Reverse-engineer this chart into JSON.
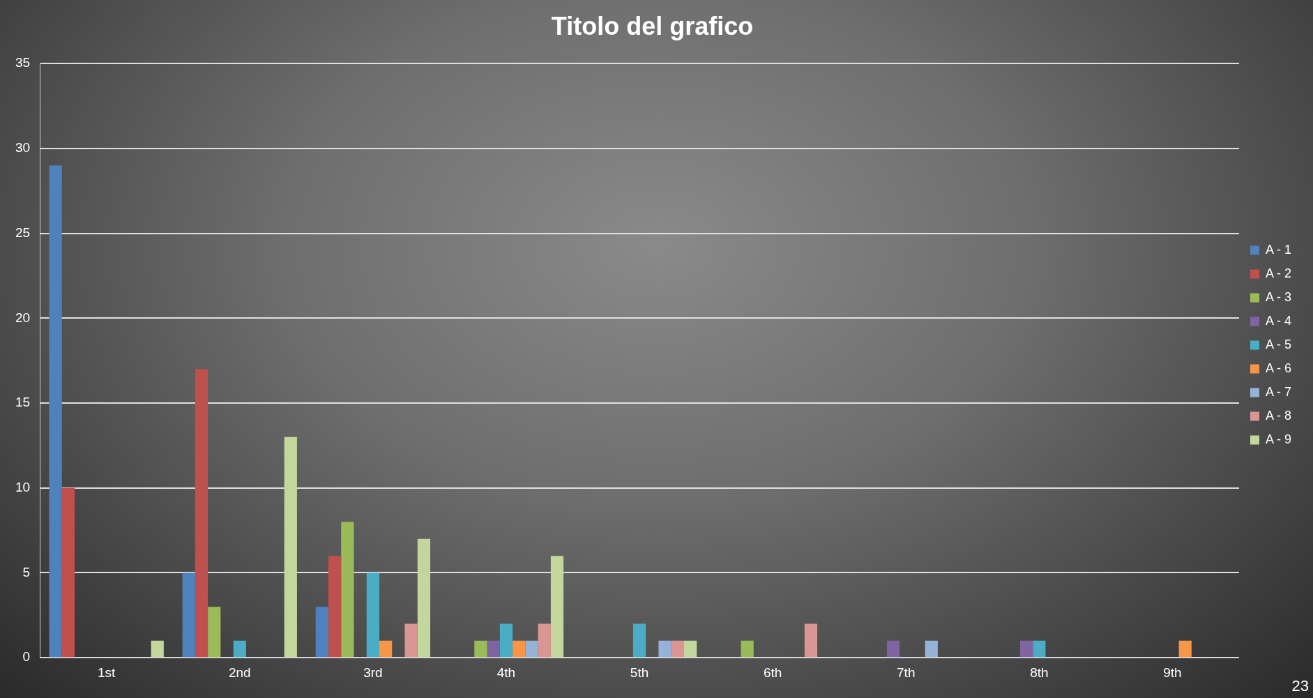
{
  "chart_data": {
    "type": "bar",
    "title": "Titolo del grafico",
    "categories": [
      "1st",
      "2nd",
      "3rd",
      "4th",
      "5th",
      "6th",
      "7th",
      "8th",
      "9th"
    ],
    "series": [
      {
        "name": "A - 1",
        "color": "#4f81bd",
        "values": [
          29,
          5,
          3,
          0,
          0,
          0,
          0,
          0,
          0
        ]
      },
      {
        "name": "A - 2",
        "color": "#c0504d",
        "values": [
          10,
          17,
          6,
          0,
          0,
          0,
          0,
          0,
          0
        ]
      },
      {
        "name": "A - 3",
        "color": "#9bbb59",
        "values": [
          0,
          3,
          8,
          1,
          0,
          1,
          0,
          0,
          0
        ]
      },
      {
        "name": "A - 4",
        "color": "#8064a2",
        "values": [
          0,
          0,
          0,
          1,
          0,
          0,
          1,
          1,
          0
        ]
      },
      {
        "name": "A - 5",
        "color": "#4bacc6",
        "values": [
          0,
          1,
          5,
          2,
          2,
          0,
          0,
          1,
          0
        ]
      },
      {
        "name": "A - 6",
        "color": "#f79646",
        "values": [
          0,
          0,
          1,
          1,
          0,
          0,
          0,
          0,
          1
        ]
      },
      {
        "name": "A - 7",
        "color": "#95b3d7",
        "values": [
          0,
          0,
          0,
          1,
          1,
          0,
          1,
          0,
          0
        ]
      },
      {
        "name": "A - 8",
        "color": "#d99694",
        "values": [
          0,
          0,
          2,
          2,
          1,
          2,
          0,
          0,
          0
        ]
      },
      {
        "name": "A - 9",
        "color": "#c3d69b",
        "values": [
          1,
          13,
          7,
          6,
          1,
          0,
          0,
          0,
          0
        ]
      }
    ],
    "ylim": [
      0,
      35
    ],
    "yticks": [
      0,
      5,
      10,
      15,
      20,
      25,
      30,
      35
    ],
    "grid": "y",
    "legend": "right",
    "annotations": [
      "23"
    ]
  }
}
